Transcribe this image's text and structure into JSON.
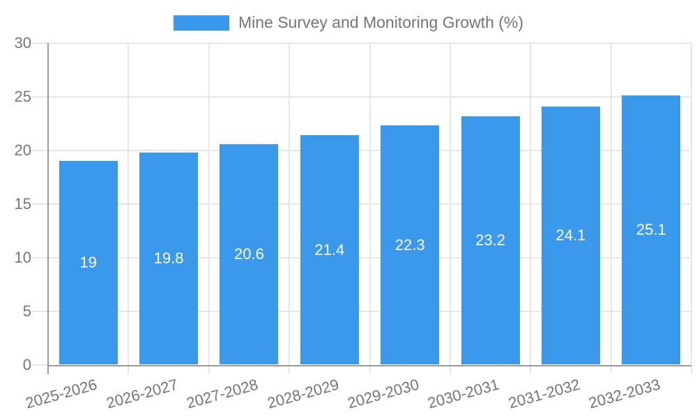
{
  "legend": {
    "label": "Mine Survey and Monitoring Growth (%)"
  },
  "colors": {
    "bar": "#3b99ec",
    "bar_label_text": "#ffffff",
    "axis_text": "#757575",
    "grid_line": "#e6e6e6",
    "axis_line": "#9a9a9a",
    "background": "#ffffff"
  },
  "chart_data": {
    "type": "bar",
    "title": "Mine Survey and Monitoring Growth (%)",
    "categories": [
      "2025-2026",
      "2026-2027",
      "2027-2028",
      "2028-2029",
      "2029-2030",
      "2030-2031",
      "2031-2032",
      "2032-2033"
    ],
    "values": [
      19,
      19.8,
      20.6,
      21.4,
      22.3,
      23.2,
      24.1,
      25.1
    ],
    "value_labels": [
      "19",
      "19.8",
      "20.6",
      "21.4",
      "22.3",
      "23.2",
      "24.1",
      "25.1"
    ],
    "xlabel": "",
    "ylabel": "",
    "ylim": [
      0,
      30
    ],
    "yticks": [
      0,
      5,
      10,
      15,
      20,
      25,
      30
    ],
    "grid": true,
    "legend_position": "top-center",
    "x_tick_rotation_deg": -15.5,
    "bar_label_position": "middle-of-bar"
  }
}
